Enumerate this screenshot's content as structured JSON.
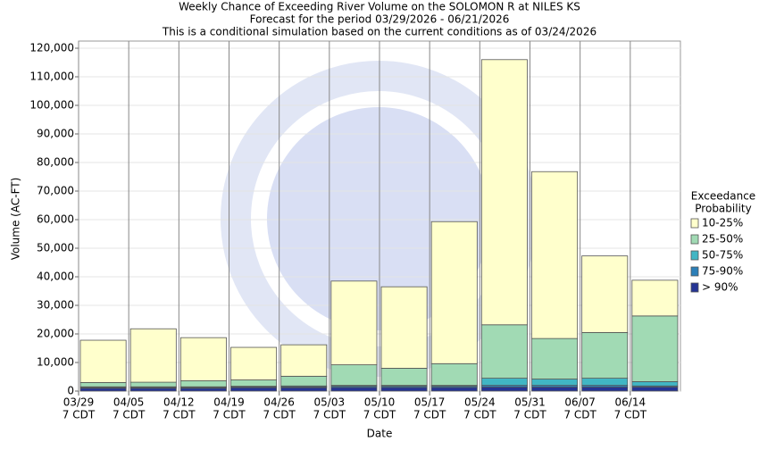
{
  "chart_data": {
    "type": "stacked_bar",
    "title": "Weekly Chance of Exceeding River Volume on the SOLOMON R at NILES KS",
    "subtitle": [
      "Forecast for the period 03/29/2026 - 06/21/2026",
      "This is a conditional simulation based on the current conditions as of 03/24/2026"
    ],
    "x_label": "Date",
    "y_label": "Volume (AC-FT)",
    "categories": [
      "03/29",
      "04/05",
      "04/12",
      "04/19",
      "04/26",
      "05/03",
      "05/10",
      "05/17",
      "05/24",
      "05/31",
      "06/07",
      "06/14"
    ],
    "x_tick_sublabel": "7 CDT",
    "legend_title": [
      "Exceedance",
      "Probability"
    ],
    "series": [
      {
        "name": "> 90%",
        "color": "#253494",
        "values": [
          1000,
          1000,
          1000,
          1200,
          1200,
          1300,
          1300,
          1300,
          1400,
          1400,
          1400,
          1400
        ]
      },
      {
        "name": "75-90%",
        "color": "#2c7fb8",
        "values": [
          300,
          300,
          300,
          300,
          300,
          400,
          400,
          400,
          600,
          600,
          600,
          400
        ]
      },
      {
        "name": "50-75%",
        "color": "#41b6c4",
        "values": [
          200,
          200,
          200,
          200,
          300,
          300,
          300,
          300,
          2500,
          2200,
          2500,
          1500
        ]
      },
      {
        "name": "25-50%",
        "color": "#a1dab4",
        "values": [
          1500,
          1600,
          2100,
          2200,
          3400,
          7200,
          6000,
          7600,
          18700,
          14200,
          16000,
          23000
        ]
      },
      {
        "name": "10-25%",
        "color": "#ffffcc",
        "values": [
          14800,
          18700,
          15100,
          11400,
          11000,
          29300,
          28500,
          49700,
          92800,
          58400,
          26800,
          12500
        ]
      }
    ],
    "ylim": [
      0,
      122500
    ],
    "yticks": [
      0,
      {
        "value": 10000,
        "label": "10,000"
      },
      {
        "value": 20000,
        "label": "20,000"
      },
      {
        "value": 30000,
        "label": "30,000"
      },
      {
        "value": 40000,
        "label": "40,000"
      },
      {
        "value": 50000,
        "label": "50,000"
      },
      {
        "value": 60000,
        "label": "60,000"
      },
      {
        "value": 70000,
        "label": "70,000"
      },
      {
        "value": 80000,
        "label": "80,000"
      },
      {
        "value": 90000,
        "label": "90,000"
      },
      {
        "value": 100000,
        "label": "100,000"
      },
      {
        "value": 110000,
        "label": "110,000"
      },
      {
        "value": 120000,
        "label": "120,000"
      }
    ],
    "grid": true
  }
}
